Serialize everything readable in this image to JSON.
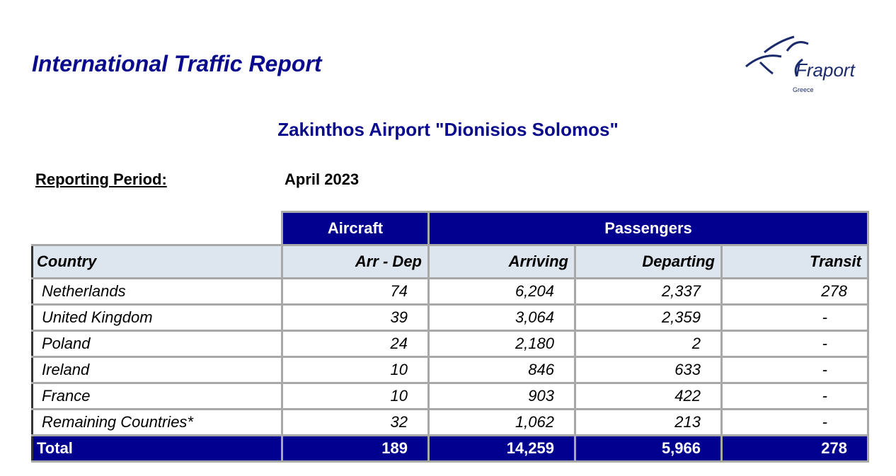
{
  "header": {
    "report_title": "International Traffic Report",
    "logo": {
      "brand": "Fraport",
      "region": "Greece"
    }
  },
  "airport_title": "Zakinthos Airport \"Dionisios Solomos\"",
  "period": {
    "label": "Reporting Period:",
    "value": "April 2023"
  },
  "table": {
    "groups": {
      "aircraft": "Aircraft",
      "passengers": "Passengers"
    },
    "columns": {
      "country": "Country",
      "arr_dep": "Arr - Dep",
      "arriving": "Arriving",
      "departing": "Departing",
      "transit": "Transit"
    },
    "rows": [
      {
        "country": "Netherlands",
        "arr_dep": "74",
        "arriving": "6,204",
        "departing": "2,337",
        "transit": "278"
      },
      {
        "country": "United Kingdom",
        "arr_dep": "39",
        "arriving": "3,064",
        "departing": "2,359",
        "transit": "-"
      },
      {
        "country": "Poland",
        "arr_dep": "24",
        "arriving": "2,180",
        "departing": "2",
        "transit": "-"
      },
      {
        "country": "Ireland",
        "arr_dep": "10",
        "arriving": "846",
        "departing": "633",
        "transit": "-"
      },
      {
        "country": "France",
        "arr_dep": "10",
        "arriving": "903",
        "departing": "422",
        "transit": "-"
      },
      {
        "country": "Remaining Countries*",
        "arr_dep": "32",
        "arriving": "1,062",
        "departing": "213",
        "transit": "-"
      }
    ],
    "total": {
      "label": "Total",
      "arr_dep": "189",
      "arriving": "14,259",
      "departing": "5,966",
      "transit": "278"
    }
  },
  "colors": {
    "brand_navy": "#02008f",
    "title_blue": "#0a0a8c",
    "header_bg": "#dde5ee",
    "grid": "#a8a8a8"
  }
}
